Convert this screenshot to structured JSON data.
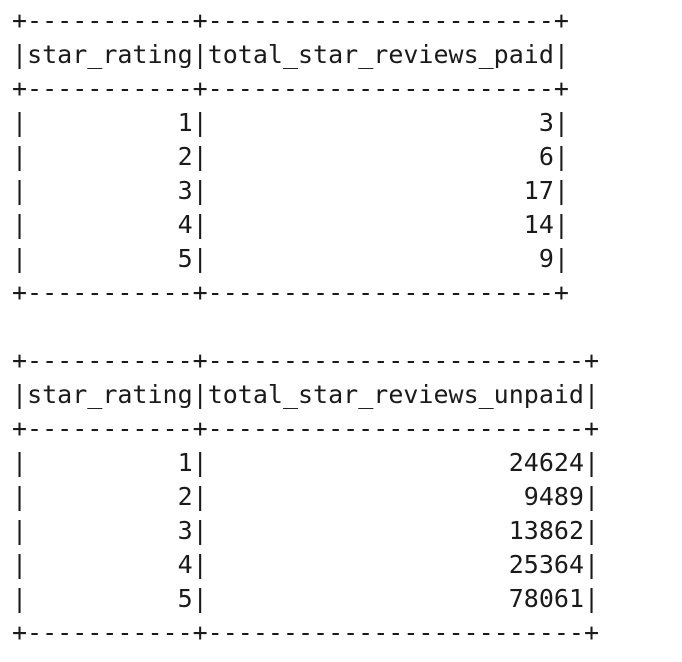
{
  "tables": [
    {
      "headers": [
        "star_rating",
        "total_star_reviews_paid"
      ],
      "rows": [
        [
          "1",
          "3"
        ],
        [
          "2",
          "6"
        ],
        [
          "3",
          "17"
        ],
        [
          "4",
          "14"
        ],
        [
          "5",
          "9"
        ]
      ]
    },
    {
      "headers": [
        "star_rating",
        "total_star_reviews_unpaid"
      ],
      "rows": [
        [
          "1",
          "24624"
        ],
        [
          "2",
          "9489"
        ],
        [
          "3",
          "13862"
        ],
        [
          "4",
          "25364"
        ],
        [
          "5",
          "78061"
        ]
      ]
    }
  ]
}
